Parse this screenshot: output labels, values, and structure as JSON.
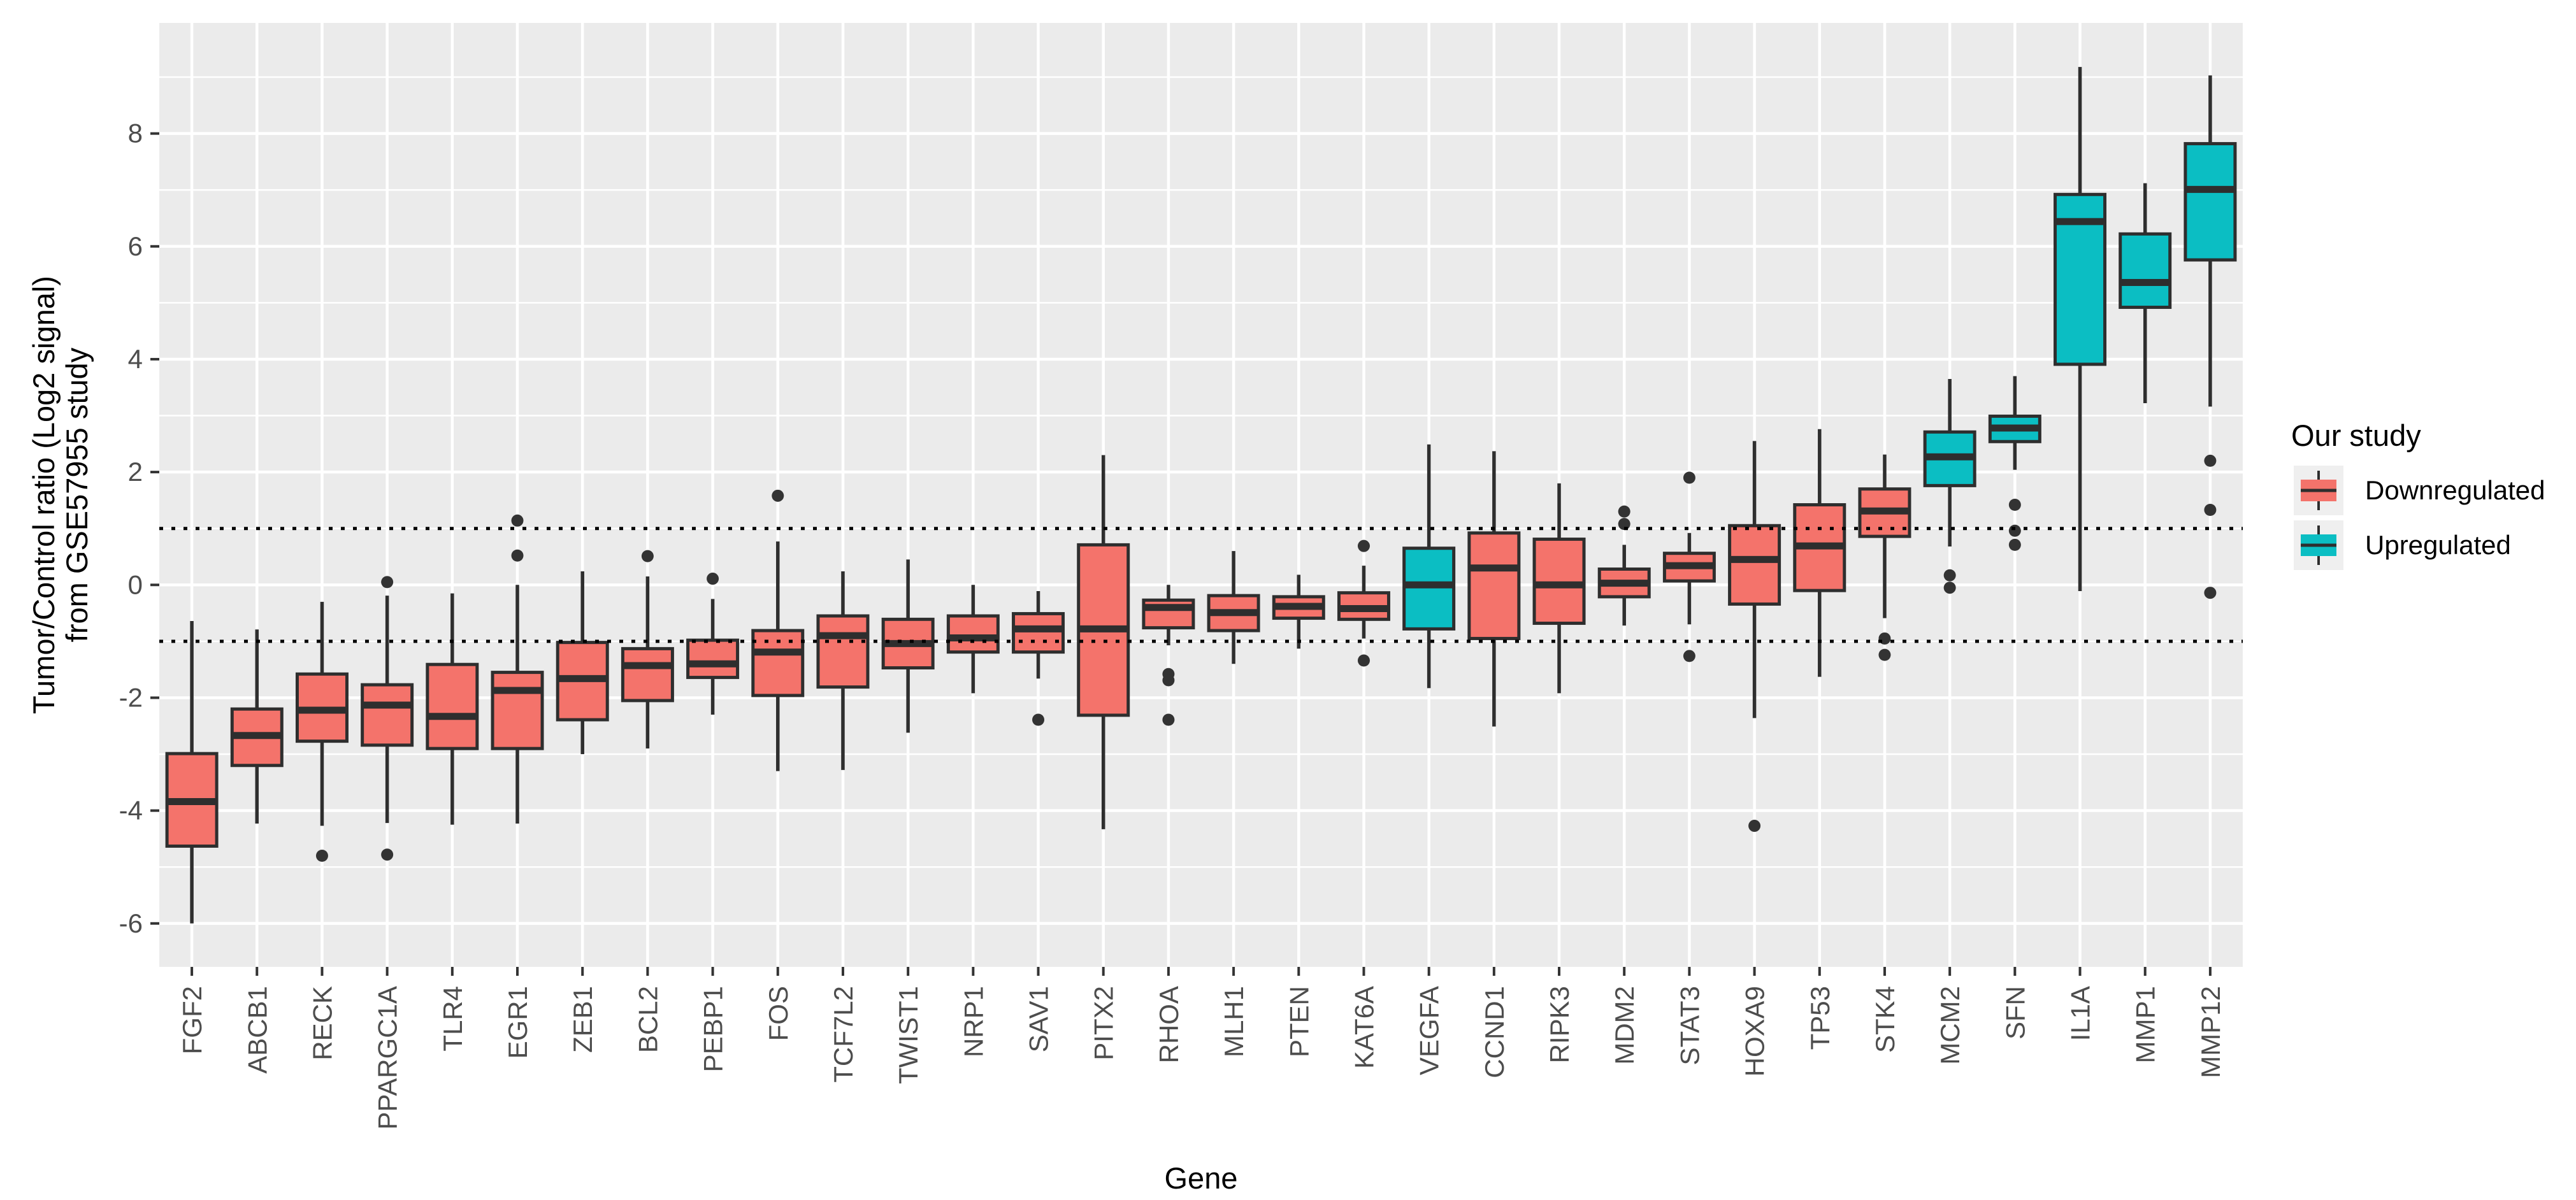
{
  "chart_data": {
    "type": "boxplot",
    "xlabel": "Gene",
    "ylabel_line1": "Tumor/Control ratio (Log2 signal)",
    "ylabel_line2": "from GSE57955 study",
    "ylim": [
      -6.77,
      9.96
    ],
    "y_tick_values": [
      8,
      6,
      4,
      2,
      0,
      -2,
      -4,
      -6
    ],
    "y_tick_labels": [
      "8",
      "6",
      "4",
      "2",
      "0",
      "-2",
      "-4",
      "-6"
    ],
    "gridlines_every": 1,
    "reference_lines": [
      1,
      -1
    ],
    "legend": {
      "title": "Our study",
      "entries": [
        {
          "label": "Downregulated",
          "group": "down"
        },
        {
          "label": "Upregulated",
          "group": "up"
        }
      ]
    },
    "colors": {
      "down": "#F4736B",
      "up": "#0BBEC3",
      "box_stroke": "#2E2E2E",
      "outlier": "#333333",
      "panel_bg": "#EBEBEB",
      "grid": "#FFFFFF",
      "axis_text": "#4D4D4D",
      "tick_mark": "#333333",
      "ref_line": "#000000",
      "legend_key_bg": "#EFEFEF"
    },
    "series": [
      {
        "gene": "FGF2",
        "group": "down",
        "low": -6.0,
        "q1": -4.63,
        "median": -3.84,
        "q3": -2.99,
        "high": -0.64,
        "outliers": []
      },
      {
        "gene": "ABCB1",
        "group": "down",
        "low": -4.23,
        "q1": -3.2,
        "median": -2.67,
        "q3": -2.2,
        "high": -0.79,
        "outliers": []
      },
      {
        "gene": "RECK",
        "group": "down",
        "low": -4.27,
        "q1": -2.77,
        "median": -2.22,
        "q3": -1.58,
        "high": -0.3,
        "outliers": [
          -4.8
        ]
      },
      {
        "gene": "PPARGC1A",
        "group": "down",
        "low": -4.22,
        "q1": -2.84,
        "median": -2.13,
        "q3": -1.77,
        "high": -0.19,
        "outliers": [
          0.05,
          -4.78
        ]
      },
      {
        "gene": "TLR4",
        "group": "down",
        "low": -4.25,
        "q1": -2.9,
        "median": -2.33,
        "q3": -1.41,
        "high": -0.15,
        "outliers": []
      },
      {
        "gene": "EGR1",
        "group": "down",
        "low": -4.23,
        "q1": -2.9,
        "median": -1.87,
        "q3": -1.55,
        "high": 0.0,
        "outliers": [
          1.14,
          0.52
        ]
      },
      {
        "gene": "ZEB1",
        "group": "down",
        "low": -3.0,
        "q1": -2.39,
        "median": -1.66,
        "q3": -1.02,
        "high": 0.24,
        "outliers": []
      },
      {
        "gene": "BCL2",
        "group": "down",
        "low": -2.9,
        "q1": -2.05,
        "median": -1.43,
        "q3": -1.13,
        "high": 0.15,
        "outliers": [
          0.51
        ]
      },
      {
        "gene": "PEBP1",
        "group": "down",
        "low": -2.3,
        "q1": -1.64,
        "median": -1.4,
        "q3": -0.98,
        "high": -0.25,
        "outliers": [
          0.11
        ]
      },
      {
        "gene": "FOS",
        "group": "down",
        "low": -3.3,
        "q1": -1.96,
        "median": -1.19,
        "q3": -0.81,
        "high": 0.77,
        "outliers": [
          1.58
        ]
      },
      {
        "gene": "TCF7L2",
        "group": "down",
        "low": -3.28,
        "q1": -1.81,
        "median": -0.9,
        "q3": -0.55,
        "high": 0.24,
        "outliers": []
      },
      {
        "gene": "TWIST1",
        "group": "down",
        "low": -2.62,
        "q1": -1.47,
        "median": -1.04,
        "q3": -0.61,
        "high": 0.45,
        "outliers": []
      },
      {
        "gene": "NRP1",
        "group": "down",
        "low": -1.92,
        "q1": -1.19,
        "median": -0.94,
        "q3": -0.55,
        "high": 0.0,
        "outliers": []
      },
      {
        "gene": "SAV1",
        "group": "down",
        "low": -1.66,
        "q1": -1.19,
        "median": -0.78,
        "q3": -0.51,
        "high": -0.11,
        "outliers": [
          -2.39
        ]
      },
      {
        "gene": "PITX2",
        "group": "down",
        "low": -4.33,
        "q1": -2.31,
        "median": -0.78,
        "q3": 0.71,
        "high": 2.3,
        "outliers": []
      },
      {
        "gene": "RHOA",
        "group": "down",
        "low": -1.07,
        "q1": -0.76,
        "median": -0.4,
        "q3": -0.27,
        "high": 0.0,
        "outliers": [
          -1.58,
          -1.69,
          -2.39
        ]
      },
      {
        "gene": "MLH1",
        "group": "down",
        "low": -1.4,
        "q1": -0.81,
        "median": -0.49,
        "q3": -0.19,
        "high": 0.6,
        "outliers": []
      },
      {
        "gene": "PTEN",
        "group": "down",
        "low": -1.13,
        "q1": -0.59,
        "median": -0.38,
        "q3": -0.21,
        "high": 0.18,
        "outliers": []
      },
      {
        "gene": "KAT6A",
        "group": "down",
        "low": -0.95,
        "q1": -0.61,
        "median": -0.42,
        "q3": -0.14,
        "high": 0.34,
        "outliers": [
          0.69,
          -1.34
        ]
      },
      {
        "gene": "VEGFA",
        "group": "up",
        "low": -1.83,
        "q1": -0.78,
        "median": 0.0,
        "q3": 0.65,
        "high": 2.49,
        "outliers": []
      },
      {
        "gene": "CCND1",
        "group": "down",
        "low": -2.51,
        "q1": -0.95,
        "median": 0.3,
        "q3": 0.92,
        "high": 2.37,
        "outliers": []
      },
      {
        "gene": "RIPK3",
        "group": "down",
        "low": -1.92,
        "q1": -0.68,
        "median": 0.0,
        "q3": 0.81,
        "high": 1.8,
        "outliers": []
      },
      {
        "gene": "MDM2",
        "group": "down",
        "low": -0.72,
        "q1": -0.21,
        "median": 0.03,
        "q3": 0.28,
        "high": 0.71,
        "outliers": [
          1.3,
          1.08
        ]
      },
      {
        "gene": "STAT3",
        "group": "down",
        "low": -0.7,
        "q1": 0.07,
        "median": 0.34,
        "q3": 0.56,
        "high": 0.92,
        "outliers": [
          1.9,
          -1.26
        ]
      },
      {
        "gene": "HOXA9",
        "group": "down",
        "low": -2.36,
        "q1": -0.34,
        "median": 0.45,
        "q3": 1.05,
        "high": 2.55,
        "outliers": [
          -4.27
        ]
      },
      {
        "gene": "TP53",
        "group": "down",
        "low": -1.63,
        "q1": -0.1,
        "median": 0.69,
        "q3": 1.42,
        "high": 2.76,
        "outliers": []
      },
      {
        "gene": "STK4",
        "group": "down",
        "low": -0.59,
        "q1": 0.86,
        "median": 1.31,
        "q3": 1.7,
        "high": 2.31,
        "outliers": [
          -0.95,
          -1.24
        ]
      },
      {
        "gene": "MCM2",
        "group": "up",
        "low": 0.68,
        "q1": 1.76,
        "median": 2.27,
        "q3": 2.71,
        "high": 3.65,
        "outliers": [
          0.17,
          -0.05
        ]
      },
      {
        "gene": "SFN",
        "group": "up",
        "low": 2.04,
        "q1": 2.54,
        "median": 2.78,
        "q3": 2.99,
        "high": 3.7,
        "outliers": [
          1.42,
          0.96,
          0.71
        ]
      },
      {
        "gene": "IL1A",
        "group": "up",
        "low": -0.11,
        "q1": 3.91,
        "median": 6.44,
        "q3": 6.92,
        "high": 9.18,
        "outliers": []
      },
      {
        "gene": "MMP1",
        "group": "up",
        "low": 3.22,
        "q1": 4.92,
        "median": 5.36,
        "q3": 6.22,
        "high": 7.12,
        "outliers": []
      },
      {
        "gene": "MMP12",
        "group": "up",
        "low": 3.16,
        "q1": 5.76,
        "median": 7.01,
        "q3": 7.82,
        "high": 9.03,
        "outliers": [
          2.2,
          1.33,
          -0.14
        ]
      }
    ]
  }
}
